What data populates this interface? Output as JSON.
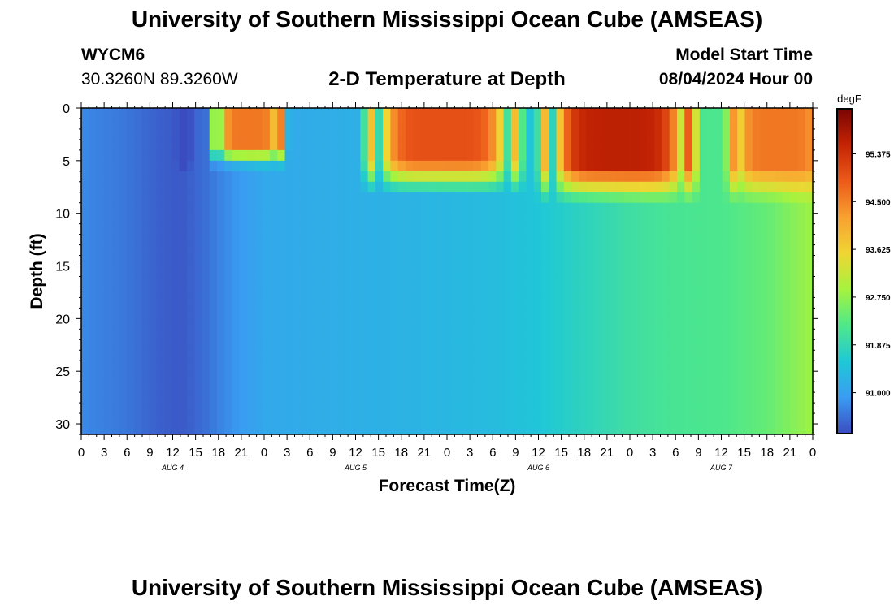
{
  "header": {
    "title": "University of Southern Mississippi Ocean Cube (AMSEAS)",
    "station_id": "WYCM6",
    "station_coords": "30.3260N  89.3260W",
    "subtitle": "2-D Temperature at Depth",
    "model_label": "Model Start Time",
    "model_date": "08/04/2024 Hour 00"
  },
  "footer": {
    "title": "University of Southern Mississippi Ocean Cube (AMSEAS)"
  },
  "chart_data": {
    "type": "heatmap",
    "title": "2-D Temperature at Depth",
    "xlabel": "Forecast Time(Z)",
    "ylabel": "Depth (ft)",
    "x_range_hours": [
      0,
      96
    ],
    "x_ticks": [
      "0",
      "3",
      "6",
      "9",
      "12",
      "15",
      "18",
      "21",
      "0",
      "3",
      "6",
      "9",
      "12",
      "15",
      "18",
      "21",
      "0",
      "3",
      "6",
      "9",
      "12",
      "15",
      "18",
      "21",
      "0",
      "3",
      "6",
      "9",
      "12",
      "15",
      "18",
      "21",
      "0"
    ],
    "day_labels": [
      {
        "label": "AUG 4",
        "hour": 12
      },
      {
        "label": "AUG 5",
        "hour": 36
      },
      {
        "label": "AUG 6",
        "hour": 60
      },
      {
        "label": "AUG 7",
        "hour": 84
      }
    ],
    "y_range": [
      0,
      31
    ],
    "y_inverted": true,
    "y_ticks": [
      0,
      5,
      10,
      15,
      20,
      25,
      30
    ],
    "colorbar": {
      "unit": "degF",
      "min": 90.25,
      "max": 96.2,
      "tick_values": [
        91.0,
        91.875,
        92.75,
        93.625,
        94.5,
        95.375
      ],
      "tick_labels": [
        "91.000",
        "91.875",
        "92.750",
        "93.625",
        "94.500",
        "95.375"
      ],
      "colors": [
        "#3b4cc0",
        "#3a9cf2",
        "#1fc8d6",
        "#4fe88a",
        "#a6f33e",
        "#f0d533",
        "#f8a030",
        "#ec5a1a",
        "#c42404",
        "#7a0403"
      ]
    },
    "deep_profile_hours": [
      0,
      6,
      10,
      13,
      16,
      20,
      24,
      30,
      36,
      42,
      48,
      54,
      60,
      66,
      72,
      78,
      84,
      90,
      96
    ],
    "deep_profile_values": [
      90.75,
      90.6,
      90.42,
      90.35,
      90.52,
      90.85,
      91.1,
      91.15,
      91.2,
      91.25,
      91.32,
      91.38,
      91.55,
      91.78,
      92.02,
      92.15,
      92.2,
      92.4,
      92.85
    ],
    "surface_warm_events": [
      {
        "start_hour": 19,
        "end_hour": 25,
        "depth_ft": 3.5,
        "peak_value": 94.6
      },
      {
        "start_hour": 40,
        "end_hour": 55,
        "depth_ft": 5,
        "peak_value": 95.0
      },
      {
        "start_hour": 63,
        "end_hour": 78,
        "depth_ft": 5.5,
        "peak_value": 95.6
      },
      {
        "start_hour": 87,
        "end_hour": 96,
        "depth_ft": 5.5,
        "peak_value": 94.6
      }
    ],
    "cold_streak": {
      "hour": 13.5,
      "max_depth_ft": 5,
      "value": 90.0
    }
  }
}
